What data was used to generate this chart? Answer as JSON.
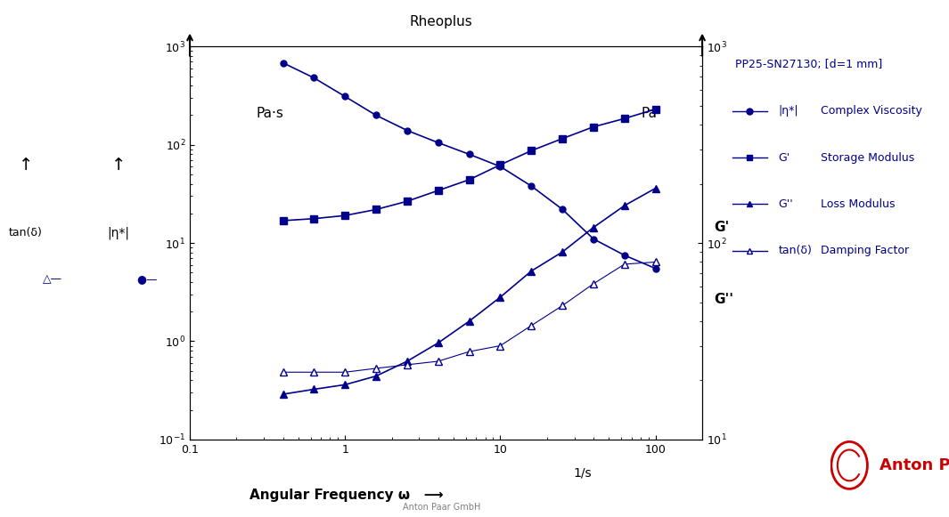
{
  "title": "Rheoplus",
  "xlabel": "Angular Frequency ω",
  "ylabel_left": "Pa·s",
  "ylabel_right": "Pa",
  "xlim": [
    0.1,
    200
  ],
  "ylim_left": [
    0.1,
    1000
  ],
  "ylim_right": [
    10,
    1000
  ],
  "color": "#00008B",
  "bg_color": "#ffffff",
  "instrument": "PP25-SN27130; [d=1 mm]",
  "omega": [
    0.4,
    0.63,
    1.0,
    1.58,
    2.51,
    3.98,
    6.31,
    10.0,
    15.85,
    25.12,
    39.81,
    63.1,
    100.0
  ],
  "eta_star": [
    680,
    480,
    310,
    200,
    140,
    105,
    80,
    60,
    38,
    22,
    11,
    7.5,
    5.5
  ],
  "G_prime": [
    130,
    133,
    138,
    148,
    163,
    185,
    210,
    250,
    295,
    340,
    390,
    430,
    480
  ],
  "G_double_prime": [
    17,
    18,
    19,
    21,
    25,
    31,
    40,
    53,
    72,
    90,
    120,
    155,
    190
  ],
  "tan_delta": [
    22,
    22,
    22,
    23,
    24,
    25,
    28,
    30,
    38,
    48,
    62,
    78,
    80
  ],
  "legend_sym_eta": "|η*|",
  "legend_sym_gp": "G'",
  "legend_sym_gpp": "G''",
  "legend_sym_tan": "tan(δ)",
  "legend_label_eta": "Complex Viscosity",
  "legend_label_gp": "Storage Modulus",
  "legend_label_gpp": "Loss Modulus",
  "legend_label_tan": "Damping Factor",
  "label_tan_delta": "tan(δ)",
  "label_eta_star": "|η*|",
  "label_gprime": "G'",
  "label_gpp": "G''",
  "label_pa": "Pa",
  "bottom_credit": "Anton Paar GmbH",
  "anton_paar_text": "Anton Paar",
  "unit_1s": "1/s"
}
